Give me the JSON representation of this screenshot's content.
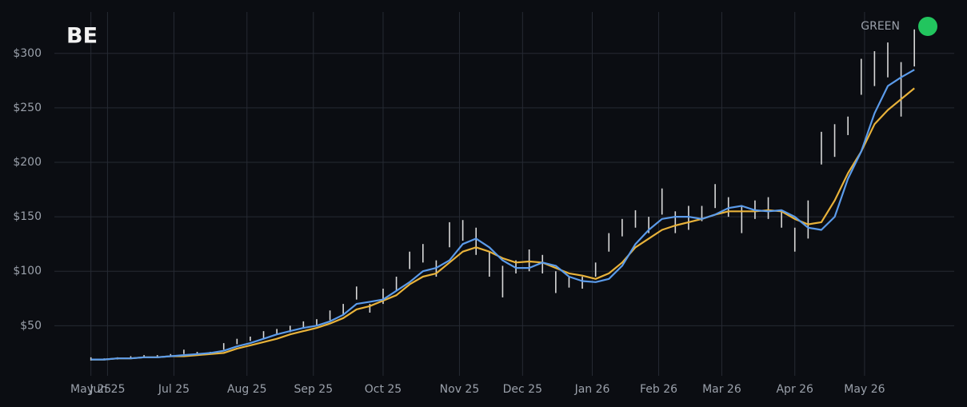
{
  "chart_data": {
    "type": "stock",
    "title": "BE",
    "status": {
      "label": "GREEN",
      "color": "#22c55e"
    },
    "x": [
      0,
      4,
      8,
      12,
      16,
      20,
      24,
      28,
      32,
      36,
      40,
      44,
      48,
      52,
      56,
      60,
      64,
      68,
      72,
      76,
      80,
      84,
      88,
      92,
      96,
      100,
      104,
      108,
      112,
      116,
      120,
      124,
      128,
      132,
      136,
      140,
      144,
      148,
      152,
      156,
      160,
      164,
      168,
      172,
      176,
      180,
      184,
      188,
      192,
      196,
      200,
      204,
      208,
      212,
      216,
      220,
      224,
      228,
      232,
      236,
      240,
      244,
      248
    ],
    "ranges": {
      "color": "#d9d9d9",
      "high": [
        21,
        20,
        21,
        22,
        23,
        23,
        24,
        28,
        26,
        26,
        34,
        38,
        40,
        45,
        47,
        50,
        54,
        56,
        64,
        70,
        86,
        70,
        84,
        95,
        118,
        125,
        110,
        145,
        147,
        140,
        118,
        105,
        110,
        120,
        115,
        100,
        95,
        95,
        108,
        135,
        148,
        156,
        150,
        176,
        155,
        160,
        160,
        180,
        168,
        160,
        165,
        168,
        155,
        140,
        165,
        228,
        235,
        242,
        295,
        302,
        310,
        292,
        322
      ],
      "low": [
        18,
        19,
        19,
        20,
        21,
        21,
        22,
        24,
        24,
        24,
        28,
        33,
        36,
        38,
        42,
        44,
        48,
        50,
        55,
        60,
        74,
        62,
        70,
        82,
        102,
        108,
        95,
        122,
        128,
        115,
        95,
        76,
        98,
        100,
        98,
        80,
        85,
        84,
        95,
        118,
        132,
        140,
        135,
        152,
        135,
        138,
        146,
        158,
        150,
        135,
        148,
        148,
        140,
        118,
        130,
        198,
        205,
        225,
        262,
        270,
        278,
        242,
        288
      ]
    },
    "series": [
      {
        "color": "#5b9bea",
        "values": [
          19,
          19,
          20,
          20,
          21,
          21,
          22,
          23,
          24,
          25,
          27,
          31,
          34,
          38,
          42,
          45,
          48,
          50,
          54,
          60,
          70,
          72,
          74,
          82,
          90,
          100,
          103,
          110,
          125,
          130,
          122,
          110,
          103,
          103,
          108,
          105,
          95,
          91,
          90,
          93,
          105,
          125,
          138,
          148,
          150,
          150,
          148,
          152,
          158,
          160,
          156,
          155,
          156,
          150,
          140,
          138,
          150,
          185,
          210,
          245,
          270,
          278,
          285
        ]
      },
      {
        "color": "#e8b23a",
        "values": [
          19,
          19,
          20,
          20,
          21,
          21,
          22,
          22,
          23,
          24,
          25,
          29,
          32,
          35,
          38,
          42,
          45,
          48,
          52,
          57,
          65,
          68,
          73,
          78,
          88,
          95,
          98,
          108,
          118,
          122,
          118,
          112,
          108,
          109,
          108,
          103,
          98,
          96,
          93,
          98,
          108,
          122,
          130,
          138,
          142,
          145,
          148,
          152,
          155,
          155,
          155,
          156,
          155,
          148,
          143,
          145,
          165,
          190,
          210,
          235,
          248,
          258,
          268
        ]
      }
    ],
    "xlim": [
      -11,
      260
    ],
    "xticks": [
      {
        "value": 0,
        "label": "May 25"
      },
      {
        "value": 5,
        "label": "Jun 25"
      },
      {
        "value": 25,
        "label": "Jul 25"
      },
      {
        "value": 47,
        "label": "Aug 25"
      },
      {
        "value": 67,
        "label": "Sep 25"
      },
      {
        "value": 88,
        "label": "Oct 25"
      },
      {
        "value": 111,
        "label": "Nov 25"
      },
      {
        "value": 130,
        "label": "Dec 25"
      },
      {
        "value": 151,
        "label": "Jan 26"
      },
      {
        "value": 171,
        "label": "Feb 26"
      },
      {
        "value": 190,
        "label": "Mar 26"
      },
      {
        "value": 212,
        "label": "Apr 26"
      },
      {
        "value": 233,
        "label": "May 26"
      }
    ],
    "ylim": [
      4,
      338
    ],
    "yticks": [
      {
        "value": 50,
        "label": "$50"
      },
      {
        "value": 100,
        "label": "$100"
      },
      {
        "value": 150,
        "label": "$150"
      },
      {
        "value": 200,
        "label": "$200"
      },
      {
        "value": 250,
        "label": "$250"
      },
      {
        "value": 300,
        "label": "$300"
      }
    ],
    "grid": true
  }
}
